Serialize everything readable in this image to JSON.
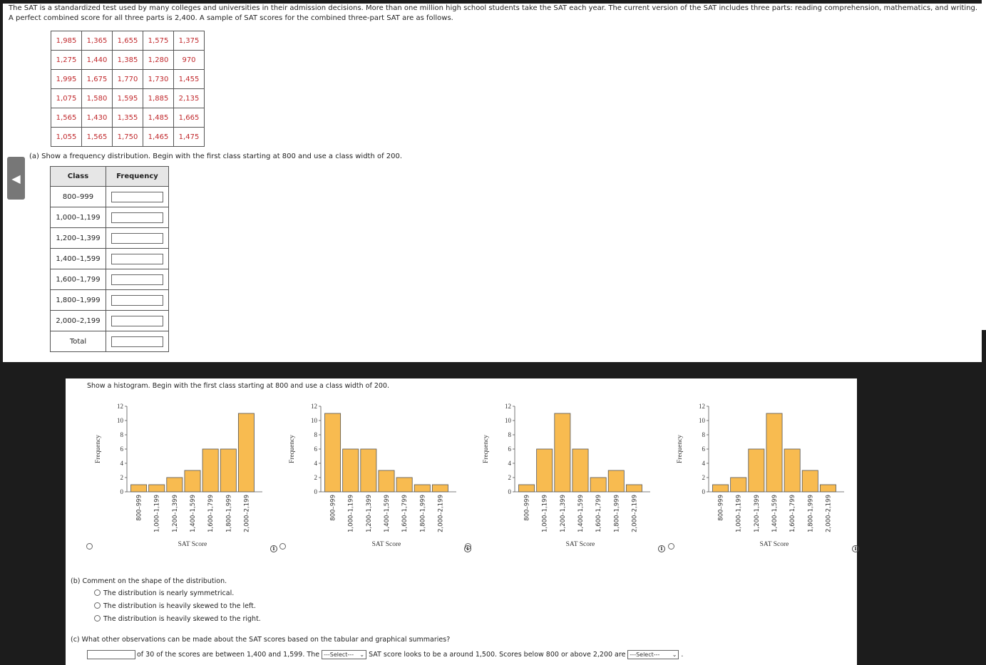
{
  "intro": "The SAT is a standardized test used by many colleges and universities in their admission decisions. More than one million high school students take the SAT each year. The current version of the SAT includes three parts: reading comprehension, mathematics, and writing. A perfect combined score for all three parts is 2,400. A sample of SAT scores for the combined three-part SAT are as follows.",
  "scores": [
    [
      "1,985",
      "1,365",
      "1,655",
      "1,575",
      "1,375"
    ],
    [
      "1,275",
      "1,440",
      "1,385",
      "1,280",
      "970"
    ],
    [
      "1,995",
      "1,675",
      "1,770",
      "1,730",
      "1,455"
    ],
    [
      "1,075",
      "1,580",
      "1,595",
      "1,885",
      "2,135"
    ],
    [
      "1,565",
      "1,430",
      "1,355",
      "1,485",
      "1,665"
    ],
    [
      "1,055",
      "1,565",
      "1,750",
      "1,465",
      "1,475"
    ]
  ],
  "part_a": {
    "label": "(a)",
    "prompt": "Show a frequency distribution. Begin with the first class starting at 800 and use a class width of 200.",
    "header_class": "Class",
    "header_frequency": "Frequency",
    "classes": [
      "800–999",
      "1,000–1,199",
      "1,200–1,399",
      "1,400–1,599",
      "1,600–1,799",
      "1,800–1,999",
      "2,000–2,199"
    ],
    "total_label": "Total"
  },
  "histogram_prompt": "Show a histogram. Begin with the first class starting at 800 and use a class width of 200.",
  "chart_data": [
    {
      "type": "bar",
      "categories": [
        "800–999",
        "1,000–1,199",
        "1,200–1,399",
        "1,400–1,599",
        "1,600–1,799",
        "1,800–1,999",
        "2,000–2,199"
      ],
      "values": [
        1,
        1,
        2,
        3,
        6,
        6,
        11
      ],
      "xlabel": "SAT Score",
      "ylabel": "Frequency",
      "ylim": [
        0,
        12
      ],
      "yticks": [
        0,
        2,
        4,
        6,
        8,
        10,
        12
      ]
    },
    {
      "type": "bar",
      "categories": [
        "800–999",
        "1,000–1,199",
        "1,200–1,399",
        "1,400–1,599",
        "1,600–1,799",
        "1,800–1,999",
        "2,000–2,199"
      ],
      "values": [
        11,
        6,
        6,
        3,
        2,
        1,
        1
      ],
      "xlabel": "SAT Score",
      "ylabel": "Frequency",
      "ylim": [
        0,
        12
      ],
      "yticks": [
        0,
        2,
        4,
        6,
        8,
        10,
        12
      ]
    },
    {
      "type": "bar",
      "categories": [
        "800–999",
        "1,000–1,199",
        "1,200–1,399",
        "1,400–1,599",
        "1,600–1,799",
        "1,800–1,999",
        "2,000–2,199"
      ],
      "values": [
        1,
        6,
        11,
        6,
        2,
        3,
        1
      ],
      "xlabel": "SAT Score",
      "ylabel": "Frequency",
      "ylim": [
        0,
        12
      ],
      "yticks": [
        0,
        2,
        4,
        6,
        8,
        10,
        12
      ]
    },
    {
      "type": "bar",
      "categories": [
        "800–999",
        "1,000–1,199",
        "1,200–1,399",
        "1,400–1,599",
        "1,600–1,799",
        "1,800–1,999",
        "2,000–2,199"
      ],
      "values": [
        1,
        2,
        6,
        11,
        6,
        3,
        1
      ],
      "xlabel": "SAT Score",
      "ylabel": "Frequency",
      "ylim": [
        0,
        12
      ],
      "yticks": [
        0,
        2,
        4,
        6,
        8,
        10,
        12
      ]
    }
  ],
  "bar_color": "#f8bb50",
  "bar_stroke": "#555555",
  "part_b": {
    "prompt": "(b)  Comment on the shape of the distribution.",
    "options": [
      "The distribution is nearly symmetrical.",
      "The distribution is heavily skewed to the left.",
      "The distribution is heavily skewed to the right."
    ]
  },
  "part_c": {
    "prompt": "(c)  What other observations can be made about the SAT scores based on the tabular and graphical summaries?",
    "text1": "of 30 of the scores are between 1,400 and 1,599. The",
    "select1": "---Select---",
    "text2": "SAT score looks to be a around 1,500. Scores below 800 or above 2,200 are",
    "select2": "---Select---",
    "text3": "."
  },
  "nav_arrow": "◀",
  "info_glyph": "i"
}
